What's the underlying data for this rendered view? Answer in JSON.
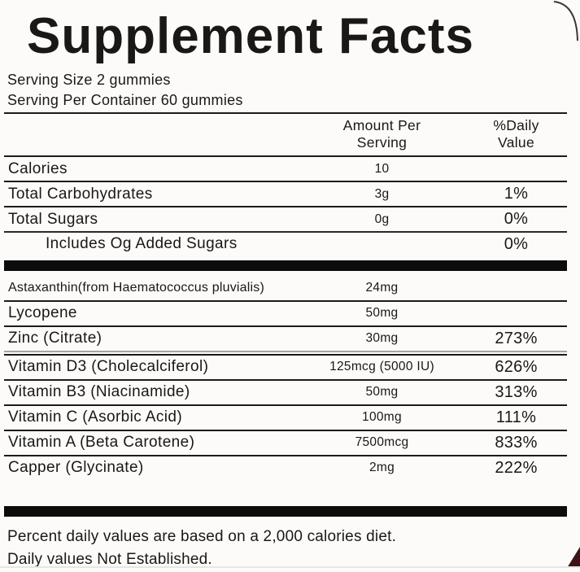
{
  "colors": {
    "background": "#fcfbf9",
    "text": "#191817",
    "rule": "#1c1b19",
    "thick_bar": "#0c0c0c",
    "double_rule_light": "#a8a49f",
    "corner_mark": "#3c1416"
  },
  "label": {
    "title": "Supplement Facts",
    "serving": {
      "size": "Serving Size 2 gummies",
      "per_container": "Serving Per Container 60 gummies"
    },
    "columns": {
      "amount": "Amount Per\nServing",
      "daily_value": "%Daily\nValue"
    },
    "rows": [
      {
        "name": "Calories",
        "amount": "10",
        "dv": "",
        "indent": false,
        "small": false,
        "sep": "medium"
      },
      {
        "name": "Total Carbohydrates",
        "amount": "3g",
        "dv": "1%",
        "indent": false,
        "small": false,
        "sep": "medium"
      },
      {
        "name": "Total Sugars",
        "amount": "0g",
        "dv": "0%",
        "indent": false,
        "small": false,
        "sep": "thin"
      },
      {
        "name": "Includes Og Added Sugars",
        "amount": "",
        "dv": "0%",
        "indent": true,
        "small": false,
        "sep": "bar"
      },
      {
        "name": "Astaxanthin(from Haematococcus pluvialis)",
        "amount": "24mg",
        "dv": "",
        "indent": false,
        "small": true,
        "sep": "medium"
      },
      {
        "name": "Lycopene",
        "amount": "50mg",
        "dv": "",
        "indent": false,
        "small": false,
        "sep": "medium"
      },
      {
        "name": "Zinc (Citrate)",
        "amount": "30mg",
        "dv": "273%",
        "indent": false,
        "small": false,
        "sep": "double"
      },
      {
        "name": "Vitamin D3 (Cholecalciferol)",
        "amount": "125mcg (5000 IU)",
        "dv": "626%",
        "indent": false,
        "small": false,
        "sep": "medium"
      },
      {
        "name": "Vitamin B3 (Niacinamide)",
        "amount": "50mg",
        "dv": "313%",
        "indent": false,
        "small": false,
        "sep": "medium"
      },
      {
        "name": "Vitamin C (Asorbic Acid)",
        "amount": "100mg",
        "dv": "111%",
        "indent": false,
        "small": false,
        "sep": "medium"
      },
      {
        "name": "Vitamin A (Beta Carotene)",
        "amount": "7500mcg",
        "dv": "833%",
        "indent": false,
        "small": false,
        "sep": "medium"
      },
      {
        "name": "Capper (Glycinate)",
        "amount": "2mg",
        "dv": "222%",
        "indent": false,
        "small": false,
        "sep": "none"
      }
    ],
    "footnotes": {
      "line1": "Percent daily values are based on a 2,000 calories diet.",
      "line2": "Daily values Not Established."
    }
  }
}
